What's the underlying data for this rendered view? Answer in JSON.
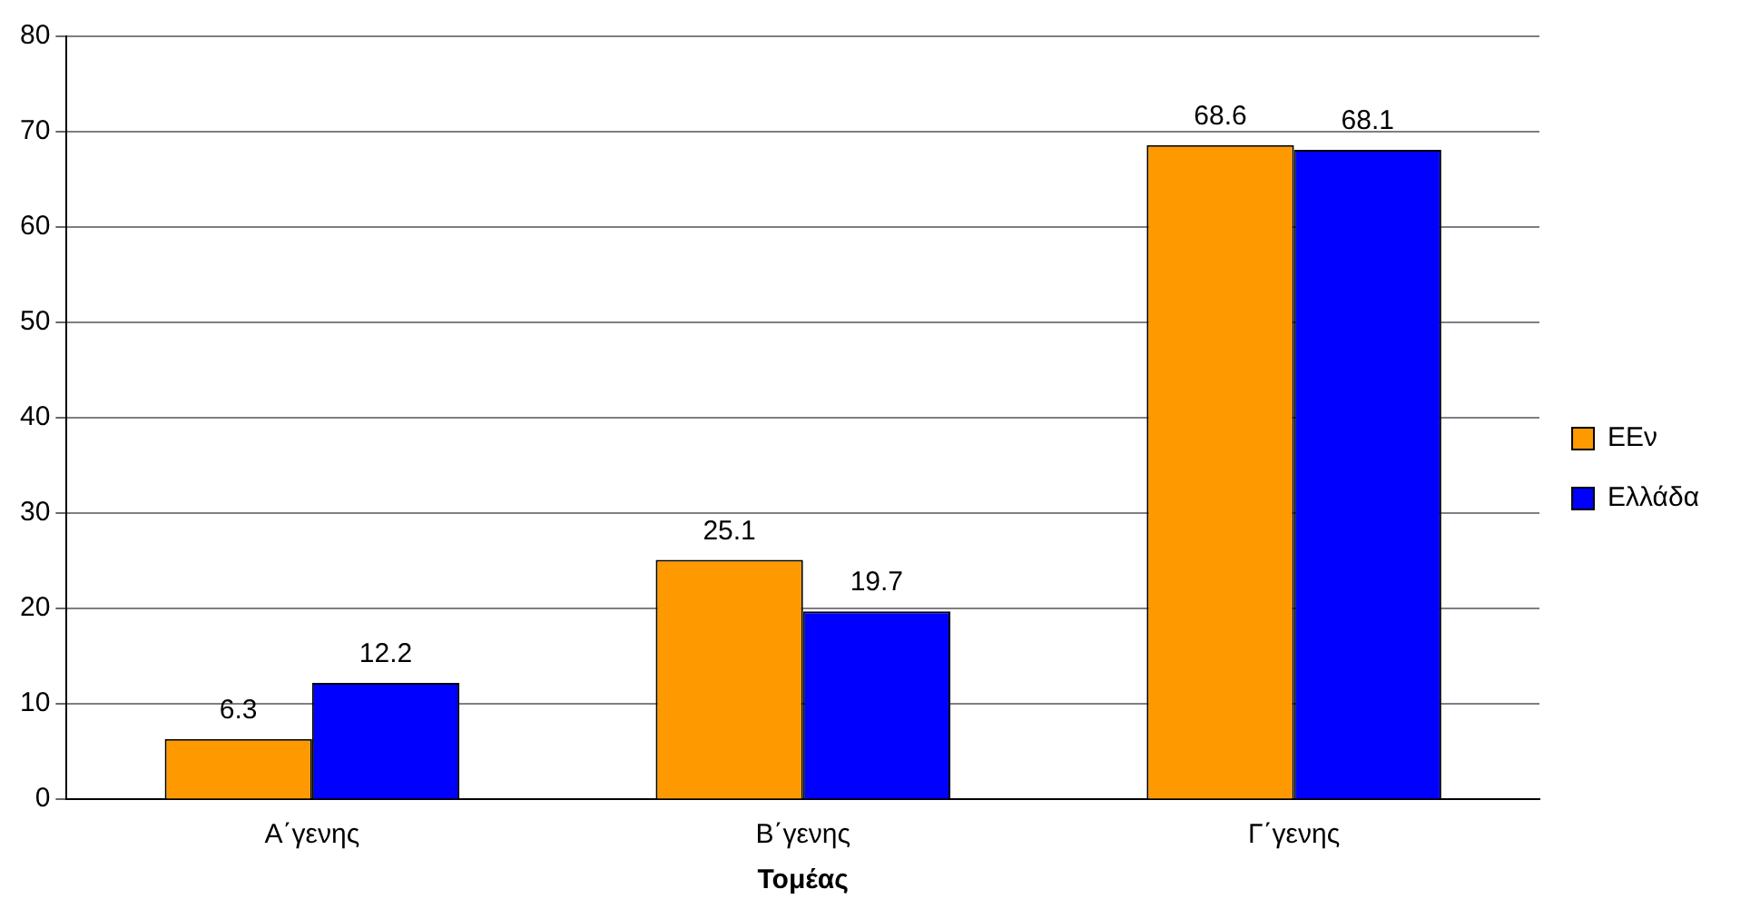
{
  "chart_data": {
    "type": "bar",
    "xlabel": "Τομέας",
    "categories": [
      "Α΄γενης",
      "Β΄γενης",
      "Γ΄γενης"
    ],
    "series": [
      {
        "name": "ΕΕν",
        "color": "#ff9900",
        "values": [
          6.3,
          25.1,
          68.6
        ]
      },
      {
        "name": "Ελλάδα",
        "color": "#0000ff",
        "values": [
          12.2,
          19.7,
          68.1
        ]
      }
    ],
    "ylim": [
      0,
      80
    ],
    "yticks": [
      0,
      10,
      20,
      30,
      40,
      50,
      60,
      70,
      80
    ],
    "grid": "y",
    "legend": "right",
    "data_labels": true
  }
}
